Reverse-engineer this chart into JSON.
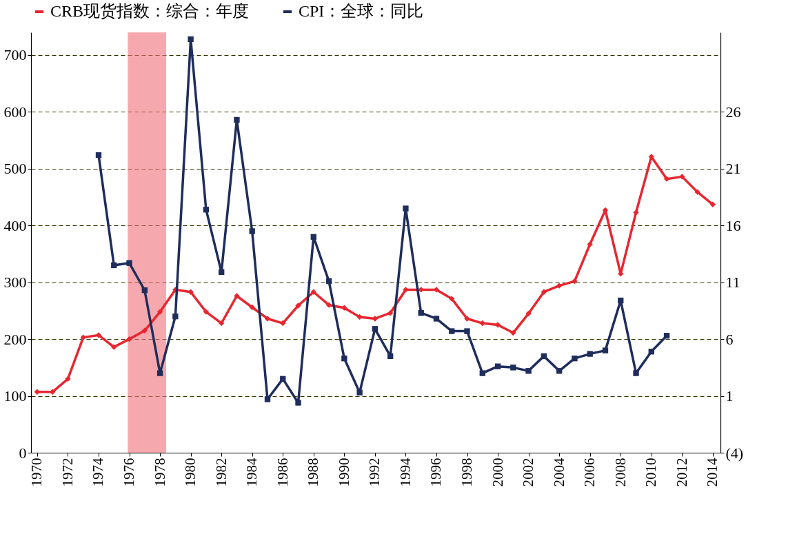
{
  "chart_data": {
    "type": "line",
    "x": [
      1970,
      1971,
      1972,
      1973,
      1974,
      1975,
      1976,
      1977,
      1978,
      1979,
      1980,
      1981,
      1982,
      1983,
      1984,
      1985,
      1986,
      1987,
      1988,
      1989,
      1990,
      1991,
      1992,
      1993,
      1994,
      1995,
      1996,
      1997,
      1998,
      1999,
      2000,
      2001,
      2002,
      2003,
      2004,
      2005,
      2006,
      2007,
      2008,
      2009,
      2010,
      2011,
      2012,
      2013,
      2014
    ],
    "series": [
      {
        "name": "CRB现货指数：综合：年度",
        "color": "#e8262f",
        "marker": "diamond",
        "values": [
          107,
          107,
          130,
          203,
          207,
          186,
          200,
          215,
          248,
          287,
          283,
          248,
          228,
          276,
          256,
          236,
          228,
          259,
          283,
          260,
          255,
          239,
          236,
          246,
          287,
          287,
          287,
          271,
          236,
          228,
          225,
          211,
          245,
          283,
          294,
          302,
          367,
          427,
          315,
          423,
          521,
          482,
          486,
          459,
          437
        ]
      },
      {
        "name": "CPI：全球：同比",
        "color": "#1f2d5c",
        "marker": "square",
        "axis": "y2",
        "x": [
          1974,
          1975,
          1976,
          1977,
          1978,
          1979,
          1980,
          1981,
          1982,
          1983,
          1984,
          1985,
          1986,
          1987,
          1988,
          1989,
          1990,
          1991,
          1992,
          1993,
          1994,
          1995,
          1996,
          1997,
          1998,
          1999,
          2000,
          2001,
          2002,
          2003,
          2004,
          2005,
          2006,
          2007,
          2008,
          2009,
          2010,
          2011
        ],
        "values": [
          22.2,
          12.5,
          12.7,
          10.3,
          3.0,
          8.0,
          32.4,
          17.4,
          11.9,
          25.3,
          15.5,
          0.7,
          2.5,
          0.4,
          15.0,
          11.1,
          4.3,
          1.3,
          6.9,
          4.5,
          17.5,
          8.3,
          7.8,
          6.7,
          6.7,
          3.0,
          3.6,
          3.5,
          3.2,
          4.5,
          3.2,
          4.3,
          4.7,
          5.0,
          9.4,
          3.0,
          4.9,
          6.3
        ]
      }
    ],
    "xlim": [
      1969.6,
      2014.5
    ],
    "xticks": [
      1970,
      1972,
      1974,
      1976,
      1978,
      1980,
      1982,
      1984,
      1986,
      1988,
      1990,
      1992,
      1994,
      1996,
      1998,
      2000,
      2002,
      2004,
      2006,
      2008,
      2010,
      2012,
      2014
    ],
    "ylim": [
      0,
      740
    ],
    "yticks": [
      0,
      100,
      200,
      300,
      400,
      500,
      600,
      700
    ],
    "y2lim": [
      -4,
      33
    ],
    "y2ticks": [
      {
        "value": -4,
        "label": "(4)"
      },
      1,
      6,
      11,
      16,
      21,
      26
    ],
    "bands": [
      {
        "axis": "x",
        "from": 1975.9,
        "to": 1978.4,
        "color": "#ee6f78"
      }
    ],
    "grid": "y",
    "legend": "top",
    "line_style": "solid"
  }
}
